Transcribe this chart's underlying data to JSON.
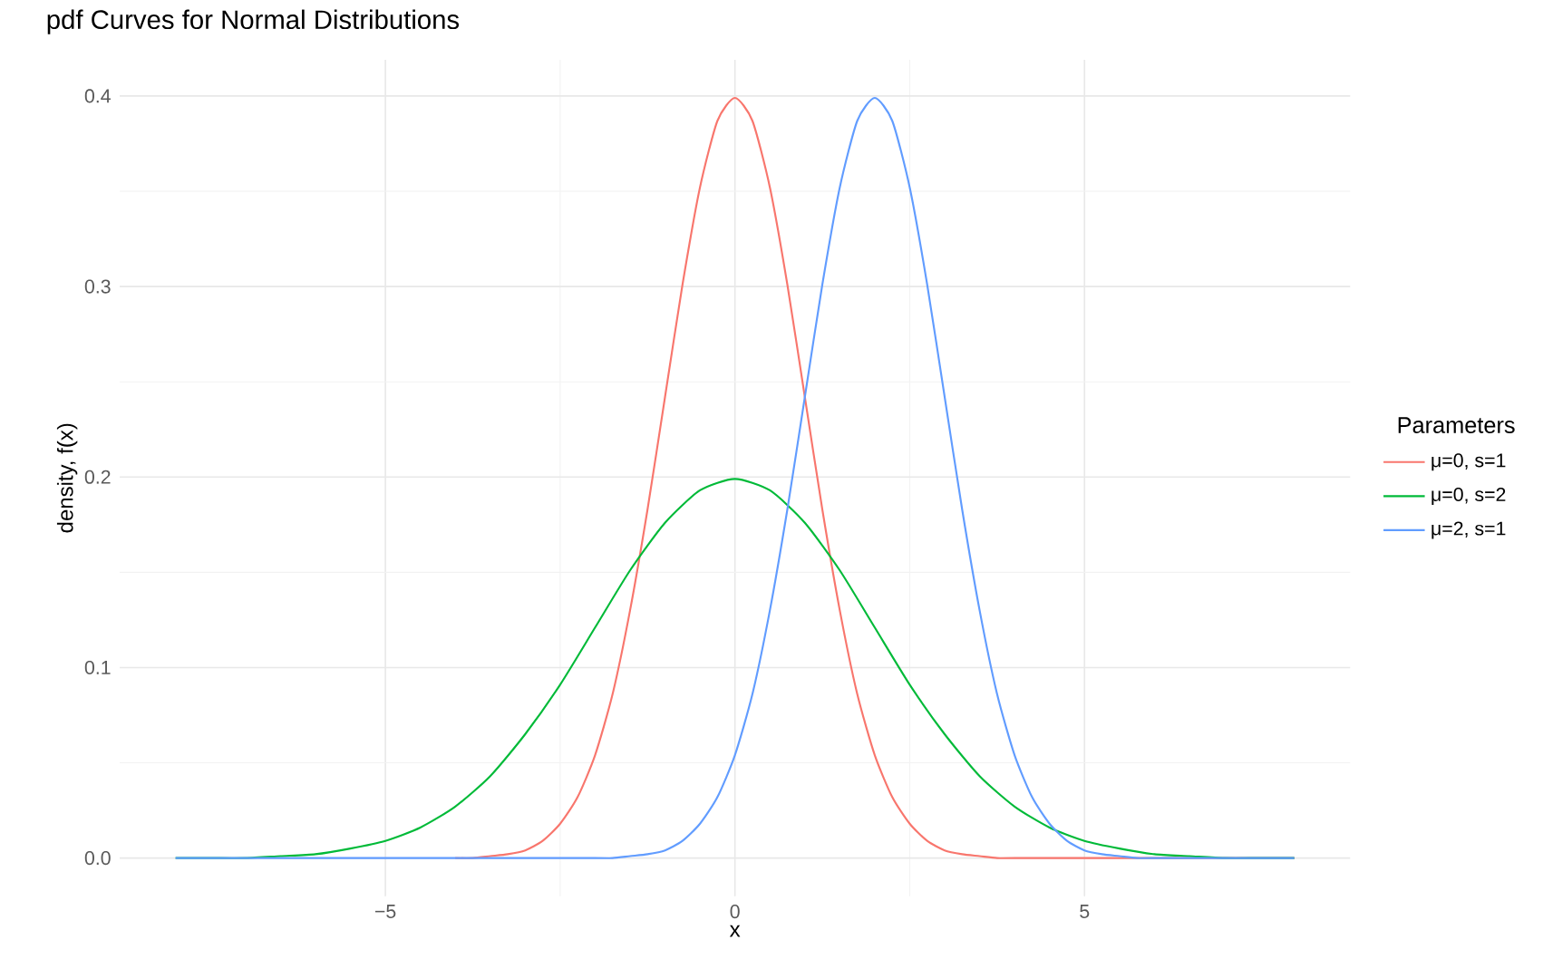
{
  "chart_data": {
    "type": "line",
    "title": "pdf Curves for Normal Distributions",
    "xlabel": "x",
    "ylabel": "density, f(x)",
    "legend_title": "Parameters",
    "series": [
      {
        "name": "μ=0, s=1",
        "color": "#f8766d",
        "x": [
          -4,
          -3.75,
          -3.5,
          -3.25,
          -3,
          -2.75,
          -2.5,
          -2.25,
          -2,
          -1.75,
          -1.5,
          -1.25,
          -1,
          -0.75,
          -0.5,
          -0.25,
          0,
          0.25,
          0.5,
          0.75,
          1,
          1.25,
          1.5,
          1.75,
          2,
          2.25,
          2.5,
          2.75,
          3,
          3.25,
          3.5,
          3.75,
          4,
          6,
          8
        ],
        "values": [
          0,
          0,
          0.001,
          0.002,
          0.004,
          0.009,
          0.018,
          0.032,
          0.054,
          0.086,
          0.13,
          0.183,
          0.242,
          0.301,
          0.352,
          0.387,
          0.399,
          0.387,
          0.352,
          0.301,
          0.242,
          0.183,
          0.13,
          0.086,
          0.054,
          0.032,
          0.018,
          0.009,
          0.004,
          0.002,
          0.001,
          0,
          0,
          0,
          0
        ]
      },
      {
        "name": "μ=0, s=2",
        "color": "#00ba38",
        "x": [
          -8,
          -7.5,
          -7,
          -6.5,
          -6,
          -5.5,
          -5,
          -4.5,
          -4,
          -3.5,
          -3,
          -2.5,
          -2,
          -1.5,
          -1,
          -0.5,
          0,
          0.5,
          1,
          1.5,
          2,
          2.5,
          3,
          3.5,
          4,
          4.5,
          5,
          5.5,
          6,
          6.5,
          7,
          7.5,
          8
        ],
        "values": [
          0,
          0,
          0,
          0.001,
          0.002,
          0.005,
          0.009,
          0.016,
          0.027,
          0.043,
          0.065,
          0.091,
          0.121,
          0.151,
          0.176,
          0.193,
          0.199,
          0.193,
          0.176,
          0.151,
          0.121,
          0.091,
          0.065,
          0.043,
          0.027,
          0.016,
          0.009,
          0.005,
          0.002,
          0.001,
          0,
          0,
          0
        ]
      },
      {
        "name": "μ=2, s=1",
        "color": "#619cff",
        "x": [
          -8,
          -6,
          -4,
          -2,
          -1.75,
          -1.5,
          -1.25,
          -1,
          -0.75,
          -0.5,
          -0.25,
          0,
          0.25,
          0.5,
          0.75,
          1,
          1.25,
          1.5,
          1.75,
          2,
          2.25,
          2.5,
          2.75,
          3,
          3.25,
          3.5,
          3.75,
          4,
          4.25,
          4.5,
          4.75,
          5,
          5.25,
          5.5,
          5.75,
          6,
          8
        ],
        "values": [
          0,
          0,
          0,
          0,
          0,
          0.001,
          0.002,
          0.004,
          0.009,
          0.018,
          0.032,
          0.054,
          0.086,
          0.13,
          0.183,
          0.242,
          0.301,
          0.352,
          0.387,
          0.399,
          0.387,
          0.352,
          0.301,
          0.242,
          0.183,
          0.13,
          0.086,
          0.054,
          0.032,
          0.018,
          0.009,
          0.004,
          0.002,
          0.001,
          0,
          0,
          0
        ]
      }
    ],
    "xlim": [
      -8.8,
      8.8
    ],
    "ylim": [
      -0.02,
      0.419
    ],
    "xticks": [
      {
        "value": -5,
        "label": "−5"
      },
      {
        "value": 0,
        "label": "0"
      },
      {
        "value": 5,
        "label": "5"
      }
    ],
    "yticks": [
      {
        "value": 0,
        "label": "0.0"
      },
      {
        "value": 0.1,
        "label": "0.1"
      },
      {
        "value": 0.2,
        "label": "0.2"
      },
      {
        "value": 0.3,
        "label": "0.3"
      },
      {
        "value": 0.4,
        "label": "0.4"
      }
    ],
    "grid": true,
    "legend": "right",
    "marker": "none",
    "line_style": "solid"
  }
}
